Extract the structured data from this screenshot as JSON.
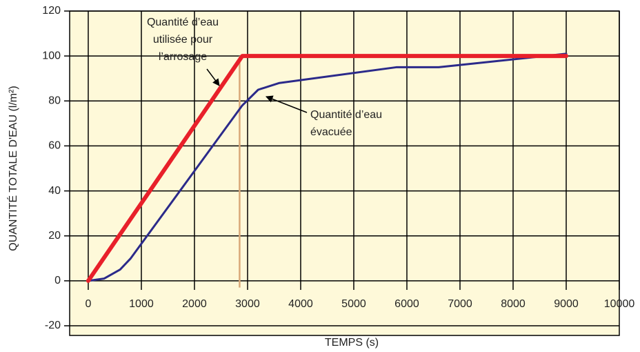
{
  "chart_data": {
    "type": "line",
    "xlabel": "TEMPS (s)",
    "ylabel": "QUANTITÉ TOTALE D'EAU (l/m²)",
    "xlim": [
      -350,
      10000
    ],
    "ylim": [
      -20,
      120
    ],
    "xticks": [
      0,
      1000,
      2000,
      3000,
      4000,
      5000,
      6000,
      7000,
      8000,
      9000,
      10000
    ],
    "yticks": [
      -20,
      0,
      20,
      40,
      60,
      80,
      100,
      120
    ],
    "grid": true,
    "background": "#fef9d9",
    "series": [
      {
        "color": "#e8202a",
        "x": [
          0,
          2900,
          9000
        ],
        "values": [
          0,
          100,
          100
        ]
      },
      {
        "color": "#2b2a8a",
        "x": [
          0,
          300,
          600,
          800,
          2900,
          3200,
          3600,
          5800,
          6600,
          9000
        ],
        "values": [
          0,
          1,
          5,
          10,
          78,
          85,
          88,
          95,
          95,
          101
        ]
      }
    ],
    "marker_line": {
      "x": 2850,
      "ymin": -3,
      "ymax": 100,
      "color": "#d9a878"
    },
    "annotations": [
      {
        "lines": [
          "Quantité d’eau",
          "utilisée pour",
          "l’arrosage"
        ]
      },
      {
        "lines": [
          "Quantité d’eau",
          "évacuée"
        ]
      }
    ]
  }
}
